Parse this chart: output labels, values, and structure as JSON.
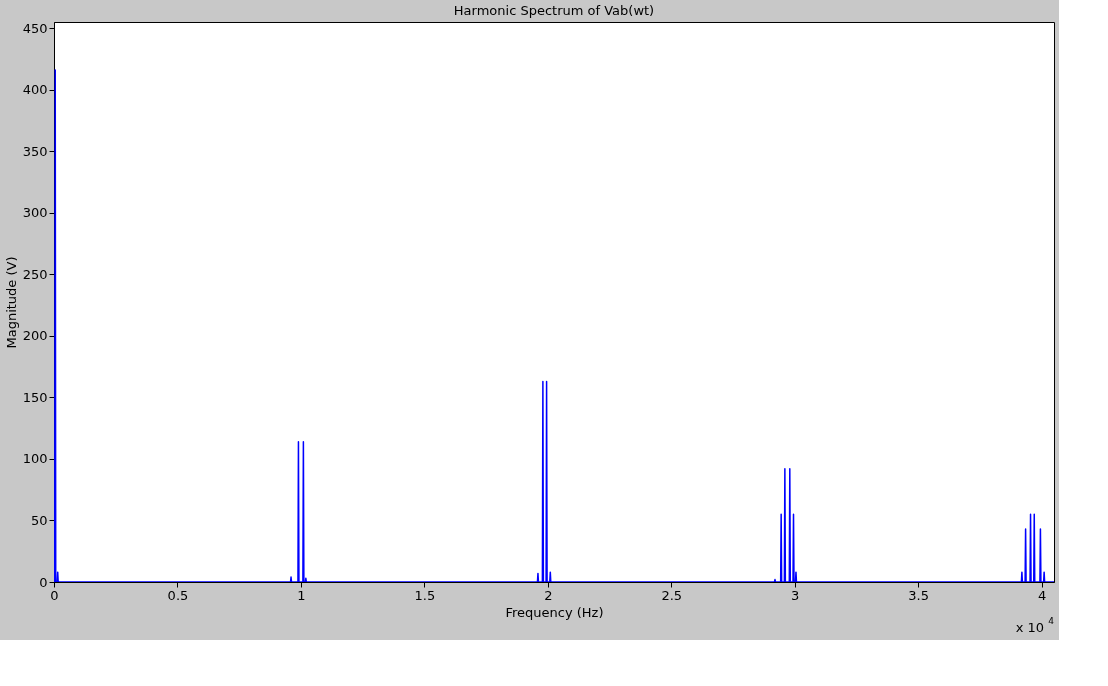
{
  "chart_data": {
    "type": "line",
    "title": "Harmonic Spectrum of Vab(wt)",
    "xlabel": "Frequency (Hz)",
    "ylabel": "Magnitude (V)",
    "annotations": [
      "x 10$^{4}$"
    ],
    "x": [
      0,
      0.003,
      0.005,
      0.007,
      0.013,
      0.015,
      0.017,
      0.958,
      0.96,
      0.962,
      0.988,
      0.99,
      0.992,
      1.008,
      1.01,
      1.012,
      1.018,
      1.02,
      1.022,
      1.958,
      1.96,
      1.962,
      1.978,
      1.98,
      1.982,
      1.993,
      1.995,
      1.997,
      2.008,
      2.01,
      2.012,
      2.918,
      2.92,
      2.922,
      2.943,
      2.945,
      2.947,
      2.958,
      2.96,
      2.962,
      2.978,
      2.98,
      2.982,
      2.993,
      2.995,
      2.997,
      3.003,
      3.005,
      3.007,
      3.918,
      3.92,
      3.922,
      3.933,
      3.935,
      3.937,
      3.953,
      3.955,
      3.957,
      3.968,
      3.97,
      3.972,
      3.993,
      3.995,
      3.997,
      4.008,
      4.01,
      4.012,
      4.05
    ],
    "series": [
      {
        "color": "#0000ff",
        "values": [
          0,
          0,
          416,
          0,
          0,
          8,
          0,
          0,
          4,
          0,
          0,
          114,
          0,
          0,
          114,
          0,
          0,
          3,
          0,
          0,
          7,
          0,
          0,
          163,
          0,
          0,
          163,
          0,
          0,
          8,
          0,
          0,
          2,
          0,
          0,
          55,
          0,
          0,
          92,
          0,
          0,
          92,
          0,
          0,
          55,
          0,
          0,
          8,
          0,
          0,
          8,
          0,
          0,
          43,
          0,
          0,
          55,
          0,
          0,
          55,
          0,
          0,
          43,
          0,
          0,
          8,
          0,
          0
        ]
      }
    ],
    "xlim": [
      0,
      4.05
    ],
    "ylim": [
      0,
      455
    ],
    "xticks": [
      0,
      0.5,
      1,
      1.5,
      2,
      2.5,
      3,
      3.5,
      4
    ],
    "yticks": [
      0,
      50,
      100,
      150,
      200,
      250,
      300,
      350,
      400,
      450
    ],
    "grid": false,
    "line_style": "solid",
    "marker": "none"
  }
}
